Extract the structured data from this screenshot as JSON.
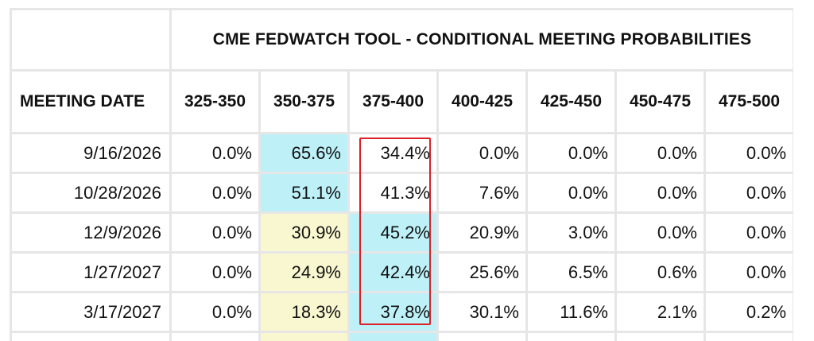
{
  "table": {
    "title": "CME FEDWATCH TOOL - CONDITIONAL MEETING PROBABILITIES",
    "headers": [
      "MEETING DATE",
      "325-350",
      "350-375",
      "375-400",
      "400-425",
      "425-450",
      "450-475",
      "475-500"
    ],
    "rows": [
      {
        "date": "9/16/2026",
        "values": [
          "0.0%",
          "65.6%",
          "34.4%",
          "0.0%",
          "0.0%",
          "0.0%",
          "0.0%"
        ]
      },
      {
        "date": "10/28/2026",
        "values": [
          "0.0%",
          "51.1%",
          "41.3%",
          "7.6%",
          "0.0%",
          "0.0%",
          "0.0%"
        ]
      },
      {
        "date": "12/9/2026",
        "values": [
          "0.0%",
          "30.9%",
          "45.2%",
          "20.9%",
          "3.0%",
          "0.0%",
          "0.0%"
        ]
      },
      {
        "date": "1/27/2027",
        "values": [
          "0.0%",
          "24.9%",
          "42.4%",
          "25.6%",
          "6.5%",
          "0.6%",
          "0.0%"
        ]
      },
      {
        "date": "3/17/2027",
        "values": [
          "0.0%",
          "18.3%",
          "37.8%",
          "30.1%",
          "11.6%",
          "2.1%",
          "0.2%"
        ]
      }
    ]
  },
  "highlight_colors": {
    "cyan": "#bdf0f7",
    "yellow": "#f9f7cf",
    "annotation_box": "#dd1f26"
  }
}
